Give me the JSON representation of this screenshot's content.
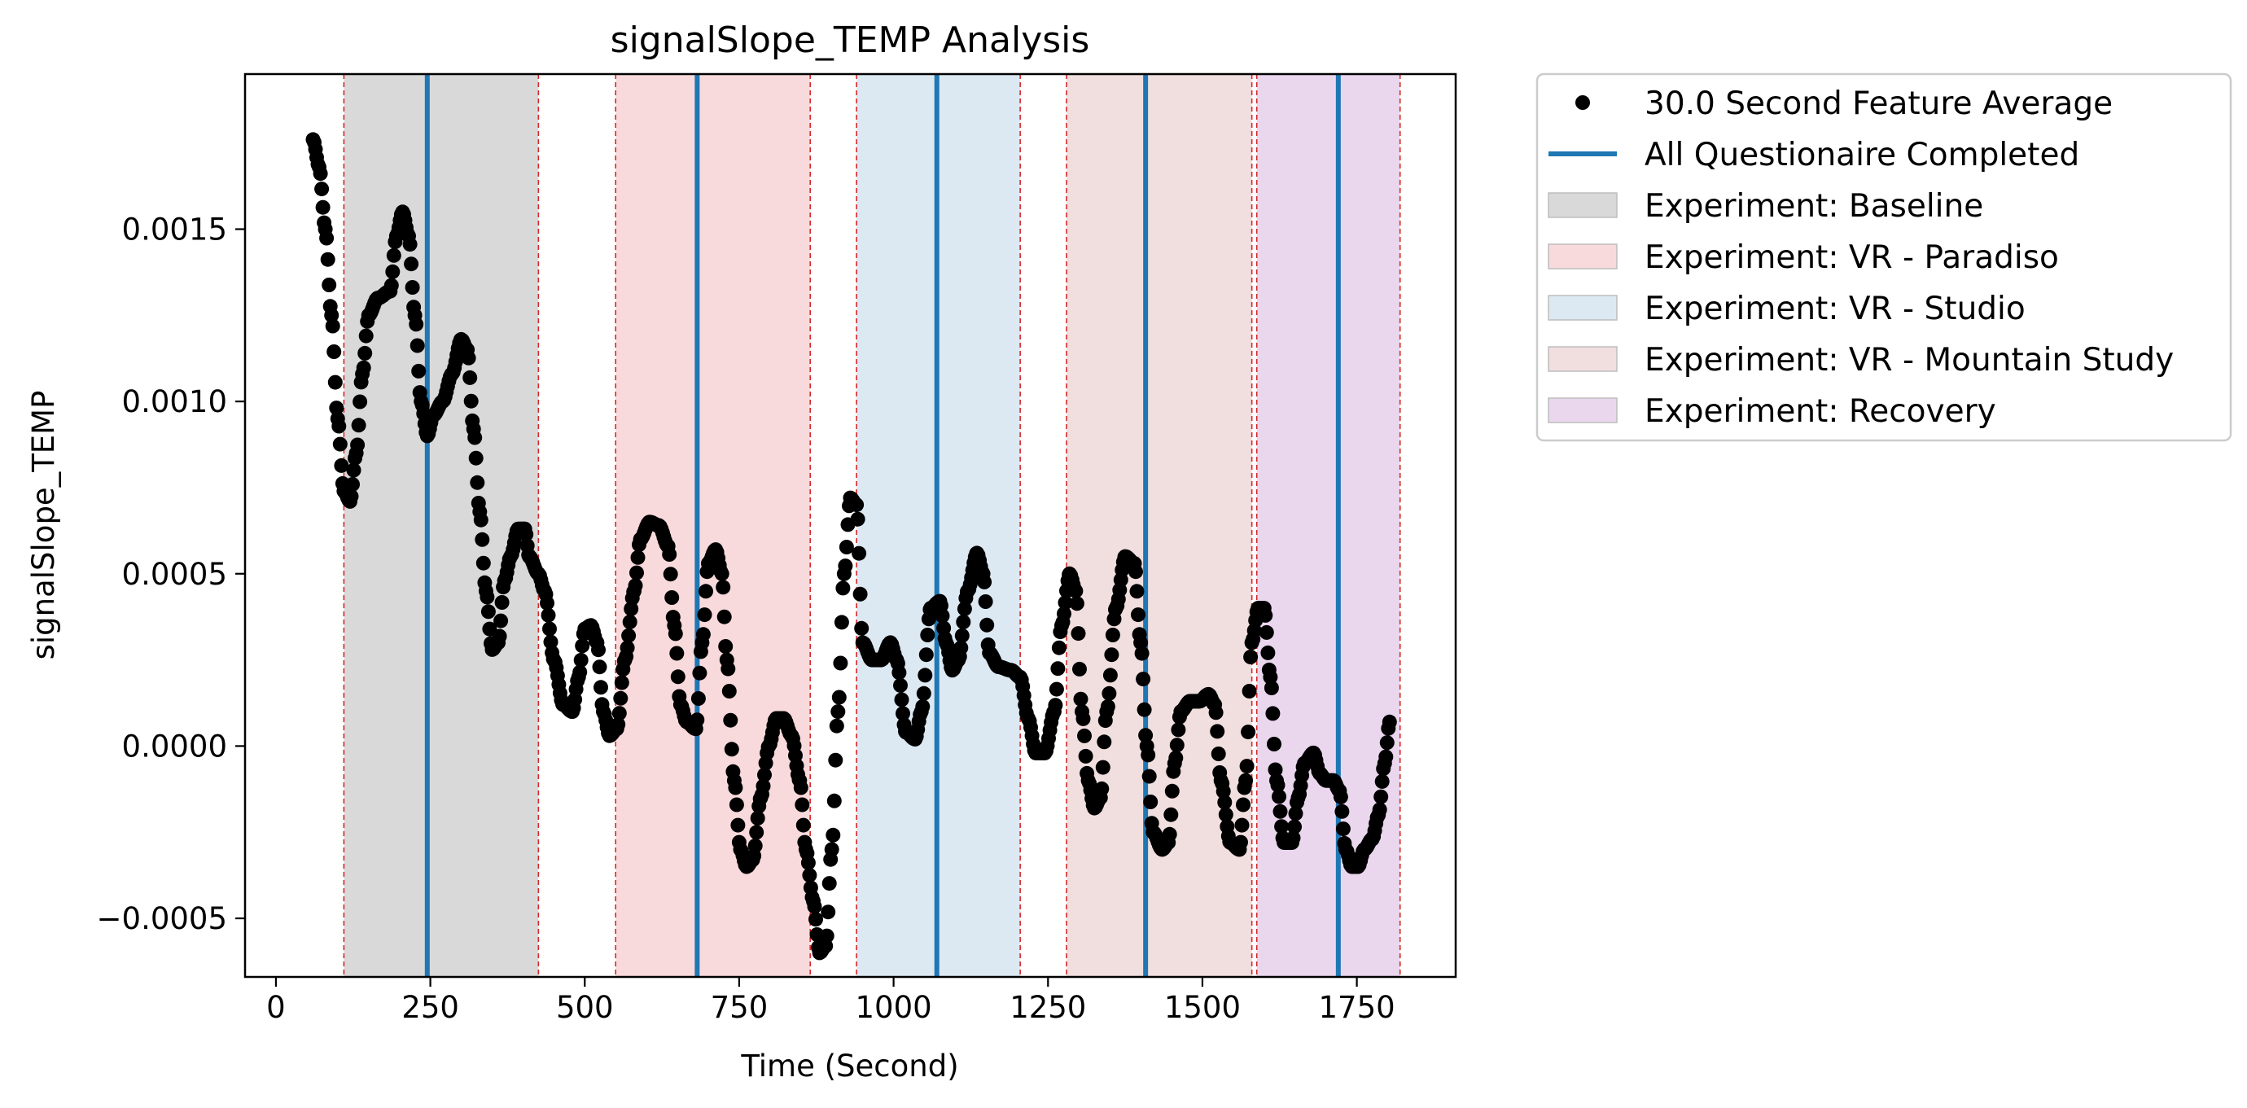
{
  "chart_data": {
    "type": "scatter",
    "title": "signalSlope_TEMP Analysis",
    "xlabel": "Time (Second)",
    "ylabel": "signalSlope_TEMP",
    "xlim": [
      -50,
      1910
    ],
    "ylim": [
      -0.00067,
      0.00195
    ],
    "x_ticks": [
      {
        "value": 0,
        "label": "0"
      },
      {
        "value": 250,
        "label": "250"
      },
      {
        "value": 500,
        "label": "500"
      },
      {
        "value": 750,
        "label": "750"
      },
      {
        "value": 1000,
        "label": "1000"
      },
      {
        "value": 1250,
        "label": "1250"
      },
      {
        "value": 1500,
        "label": "1500"
      },
      {
        "value": 1750,
        "label": "1750"
      }
    ],
    "y_ticks": [
      {
        "value": -0.0005,
        "label": "−0.0005"
      },
      {
        "value": 0.0,
        "label": "0.0000"
      },
      {
        "value": 0.0005,
        "label": "0.0005"
      },
      {
        "value": 0.001,
        "label": "0.0010"
      },
      {
        "value": 0.0015,
        "label": "0.0015"
      }
    ],
    "grid": false,
    "legend_position": "outside-top-right",
    "series": [
      {
        "name": "30.0 Second Feature Average",
        "kind": "scatter",
        "color": "#000000",
        "anchors": [
          [
            60,
            0.00176
          ],
          [
            70,
            0.00168
          ],
          [
            80,
            0.0015
          ],
          [
            90,
            0.00125
          ],
          [
            100,
            0.00095
          ],
          [
            110,
            0.00074
          ],
          [
            120,
            0.00071
          ],
          [
            130,
            0.00085
          ],
          [
            140,
            0.00108
          ],
          [
            150,
            0.00125
          ],
          [
            165,
            0.0013
          ],
          [
            185,
            0.00132
          ],
          [
            195,
            0.00148
          ],
          [
            205,
            0.00155
          ],
          [
            215,
            0.00148
          ],
          [
            225,
            0.00125
          ],
          [
            235,
            0.001
          ],
          [
            245,
            0.0009
          ],
          [
            255,
            0.00096
          ],
          [
            270,
            0.001
          ],
          [
            285,
            0.00108
          ],
          [
            300,
            0.00118
          ],
          [
            310,
            0.00115
          ],
          [
            320,
            0.00092
          ],
          [
            330,
            0.00068
          ],
          [
            340,
            0.00045
          ],
          [
            350,
            0.00028
          ],
          [
            360,
            0.0003
          ],
          [
            370,
            0.00048
          ],
          [
            380,
            0.00055
          ],
          [
            392,
            0.00063
          ],
          [
            403,
            0.00063
          ],
          [
            410,
            0.00055
          ],
          [
            425,
            0.0005
          ],
          [
            435,
            0.00045
          ],
          [
            450,
            0.00025
          ],
          [
            465,
            0.00012
          ],
          [
            480,
            0.0001
          ],
          [
            490,
            0.0002
          ],
          [
            500,
            0.00034
          ],
          [
            510,
            0.00035
          ],
          [
            520,
            0.0003
          ],
          [
            530,
            0.0001
          ],
          [
            540,
            3e-05
          ],
          [
            552,
            5e-05
          ],
          [
            565,
            0.00025
          ],
          [
            580,
            0.00045
          ],
          [
            590,
            0.0006
          ],
          [
            605,
            0.00065
          ],
          [
            620,
            0.00064
          ],
          [
            635,
            0.00058
          ],
          [
            645,
            0.00035
          ],
          [
            655,
            0.00012
          ],
          [
            665,
            7e-05
          ],
          [
            680,
            5e-05
          ],
          [
            690,
            0.0003
          ],
          [
            700,
            0.00053
          ],
          [
            712,
            0.00057
          ],
          [
            722,
            0.0005
          ],
          [
            730,
            0.00025
          ],
          [
            742,
            -0.0001
          ],
          [
            752,
            -0.0003
          ],
          [
            762,
            -0.00035
          ],
          [
            772,
            -0.00033
          ],
          [
            785,
            -0.00015
          ],
          [
            798,
            0.0
          ],
          [
            810,
            8e-05
          ],
          [
            822,
            8e-05
          ],
          [
            835,
            3e-05
          ],
          [
            848,
            -0.0001
          ],
          [
            858,
            -0.0003
          ],
          [
            870,
            -0.00045
          ],
          [
            880,
            -0.0006
          ],
          [
            890,
            -0.00058
          ],
          [
            900,
            -0.0003
          ],
          [
            910,
            0.0001
          ],
          [
            920,
            0.0005
          ],
          [
            930,
            0.00072
          ],
          [
            940,
            0.0007
          ],
          [
            950,
            0.0003
          ],
          [
            965,
            0.00025
          ],
          [
            980,
            0.00025
          ],
          [
            995,
            0.0003
          ],
          [
            1005,
            0.00025
          ],
          [
            1020,
            4e-05
          ],
          [
            1035,
            2e-05
          ],
          [
            1045,
            0.0001
          ],
          [
            1060,
            0.0004
          ],
          [
            1075,
            0.00042
          ],
          [
            1085,
            0.0003
          ],
          [
            1095,
            0.00022
          ],
          [
            1105,
            0.00025
          ],
          [
            1120,
            0.00045
          ],
          [
            1135,
            0.00056
          ],
          [
            1145,
            0.0005
          ],
          [
            1155,
            0.00027
          ],
          [
            1170,
            0.00023
          ],
          [
            1190,
            0.00022
          ],
          [
            1205,
            0.0002
          ],
          [
            1218,
            8e-05
          ],
          [
            1230,
            -2e-05
          ],
          [
            1245,
            -2e-05
          ],
          [
            1260,
            0.0001
          ],
          [
            1272,
            0.00035
          ],
          [
            1285,
            0.0005
          ],
          [
            1295,
            0.00045
          ],
          [
            1305,
            0.0001
          ],
          [
            1315,
            -0.0001
          ],
          [
            1325,
            -0.00018
          ],
          [
            1335,
            -0.00015
          ],
          [
            1345,
            0.0001
          ],
          [
            1360,
            0.0004
          ],
          [
            1375,
            0.00055
          ],
          [
            1390,
            0.00053
          ],
          [
            1400,
            0.0003
          ],
          [
            1410,
            0.0
          ],
          [
            1420,
            -0.00025
          ],
          [
            1435,
            -0.0003
          ],
          [
            1445,
            -0.00028
          ],
          [
            1455,
            -5e-05
          ],
          [
            1465,
            0.0001
          ],
          [
            1480,
            0.00013
          ],
          [
            1495,
            0.00013
          ],
          [
            1510,
            0.00015
          ],
          [
            1520,
            0.00012
          ],
          [
            1530,
            -0.0001
          ],
          [
            1545,
            -0.00028
          ],
          [
            1560,
            -0.0003
          ],
          [
            1570,
            -0.0001
          ],
          [
            1580,
            0.0003
          ],
          [
            1590,
            0.0004
          ],
          [
            1600,
            0.0004
          ],
          [
            1610,
            0.0002
          ],
          [
            1620,
            -0.0001
          ],
          [
            1632,
            -0.00028
          ],
          [
            1645,
            -0.00028
          ],
          [
            1655,
            -0.00015
          ],
          [
            1665,
            -5e-05
          ],
          [
            1680,
            -2e-05
          ],
          [
            1690,
            -8e-05
          ],
          [
            1700,
            -0.0001
          ],
          [
            1712,
            -0.0001
          ],
          [
            1722,
            -0.00013
          ],
          [
            1732,
            -0.0003
          ],
          [
            1742,
            -0.00035
          ],
          [
            1752,
            -0.00035
          ],
          [
            1762,
            -0.0003
          ],
          [
            1775,
            -0.00027
          ],
          [
            1785,
            -0.0002
          ],
          [
            1795,
            -5e-05
          ],
          [
            1803,
            7e-05
          ]
        ]
      },
      {
        "name": "All Questionaire Completed",
        "kind": "vline",
        "color": "#1f77b4",
        "x_values": [
          245,
          682,
          1070,
          1408,
          1720
        ]
      }
    ],
    "spans": [
      {
        "name": "Experiment: Baseline",
        "color": "#d9d9d9",
        "ranges": [
          [
            110,
            425
          ]
        ]
      },
      {
        "name": "Experiment: VR - Paradiso",
        "color": "#f9dadc",
        "ranges": [
          [
            550,
            865
          ]
        ]
      },
      {
        "name": "Experiment: VR - Studio",
        "color": "#dce9f3",
        "ranges": [
          [
            940,
            1205
          ]
        ]
      },
      {
        "name": "Experiment: VR - Mountain Study",
        "color": "#f1dfdf",
        "ranges": [
          [
            1280,
            1580
          ]
        ]
      },
      {
        "name": "Experiment: Recovery",
        "color": "#ead7ee",
        "ranges": [
          [
            1588,
            1820
          ]
        ]
      }
    ],
    "boundary_lines": {
      "color": "#d62728",
      "x_values": [
        110,
        425,
        550,
        865,
        940,
        1205,
        1280,
        1580,
        1588,
        1820
      ]
    }
  }
}
